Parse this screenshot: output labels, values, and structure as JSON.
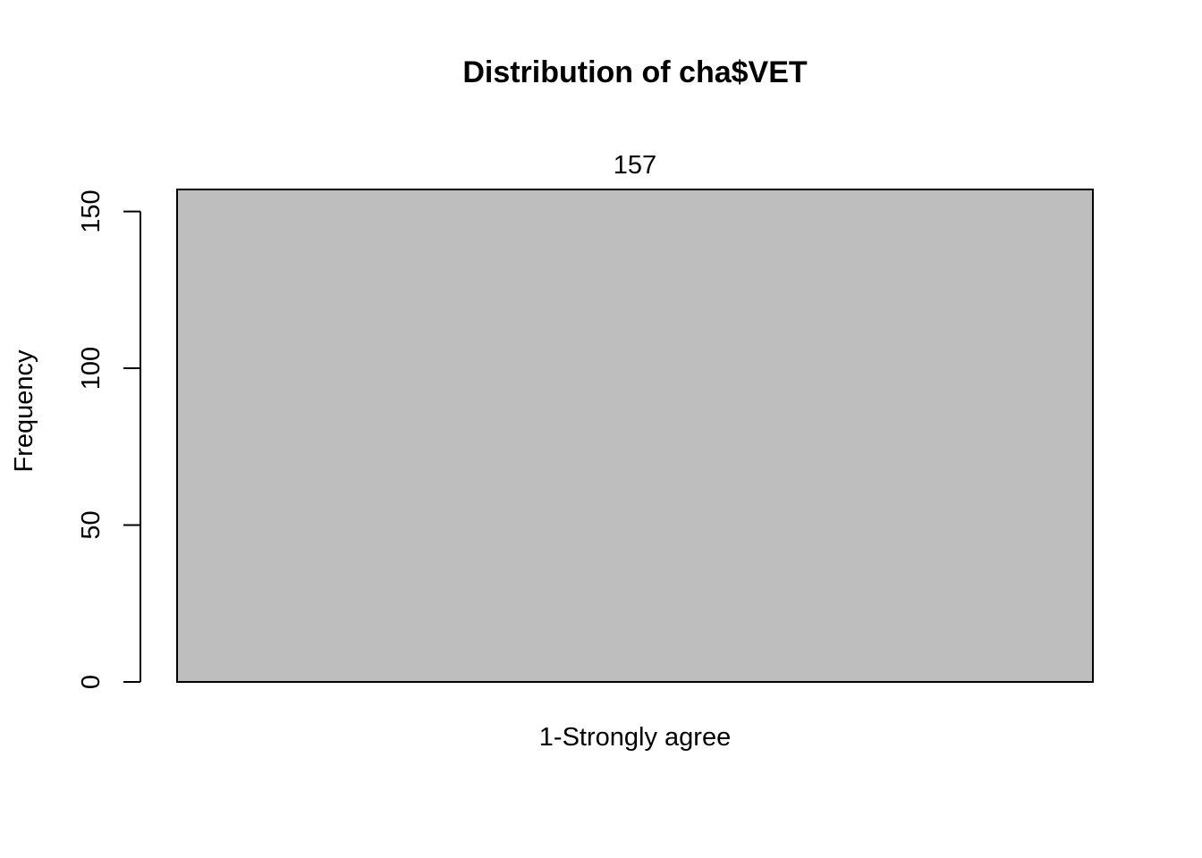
{
  "chart_data": {
    "type": "bar",
    "title": "Distribution of cha$VET",
    "xlabel": "",
    "ylabel": "Frequency",
    "categories": [
      "1-Strongly agree"
    ],
    "values": [
      157
    ],
    "data_labels": [
      "157"
    ],
    "ylim": [
      0,
      157
    ],
    "yticks": [
      0,
      50,
      100,
      150
    ],
    "grid": false,
    "legend": "none",
    "colors": {
      "bar_fill": "#bebebe",
      "bar_stroke": "#000000",
      "axis": "#000000",
      "text": "#000000"
    }
  }
}
